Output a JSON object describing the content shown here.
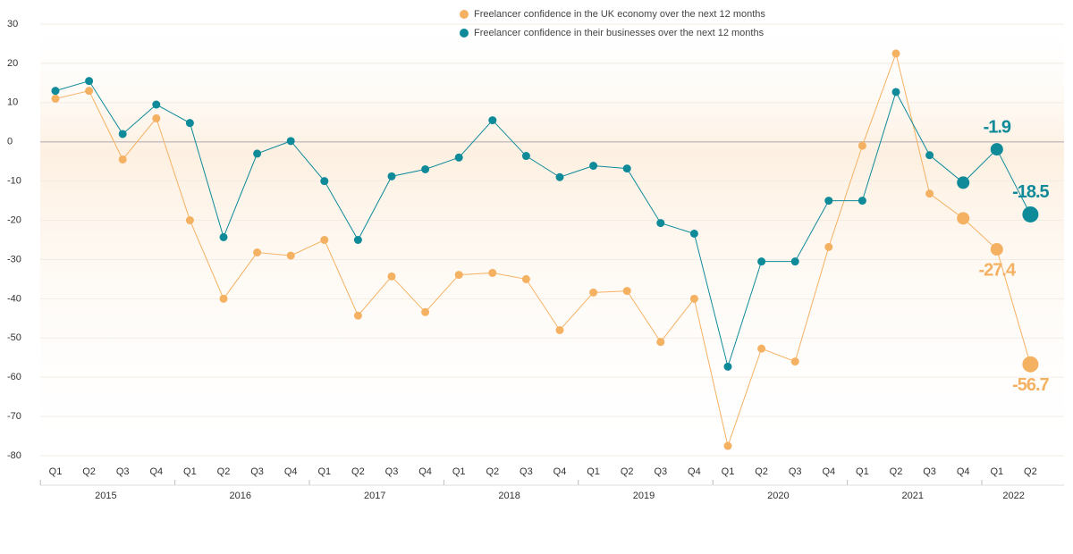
{
  "chart_data": {
    "type": "line",
    "categories": [
      "Q1",
      "Q2",
      "Q3",
      "Q4",
      "Q1",
      "Q2",
      "Q3",
      "Q4",
      "Q1",
      "Q2",
      "Q3",
      "Q4",
      "Q1",
      "Q2",
      "Q3",
      "Q4",
      "Q1",
      "Q2",
      "Q3",
      "Q4",
      "Q1",
      "Q2",
      "Q3",
      "Q4",
      "Q1",
      "Q2",
      "Q3",
      "Q4",
      "Q1",
      "Q2"
    ],
    "groups": [
      "2015",
      "2016",
      "2017",
      "2018",
      "2019",
      "2020",
      "2021",
      "2022"
    ],
    "series": [
      {
        "name": "Freelancer confidence in the UK economy over the next 12 months",
        "color": "#f5b162",
        "values": [
          11,
          13,
          -4.5,
          6,
          -20,
          -40,
          -28.2,
          -29,
          -25,
          -44.3,
          -34.3,
          -43.4,
          -33.9,
          -33.4,
          -35,
          -48,
          -38.4,
          -38,
          -51,
          -40,
          -77.5,
          -52.7,
          -56,
          -26.8,
          -1,
          22.5,
          -13.2,
          -19.5,
          -27.4,
          -56.7
        ],
        "value_labels": [
          null,
          null,
          null,
          null,
          null,
          null,
          null,
          null,
          null,
          null,
          null,
          null,
          null,
          null,
          null,
          null,
          null,
          null,
          null,
          null,
          null,
          null,
          null,
          null,
          null,
          null,
          null,
          null,
          "-27.4",
          "-56.7"
        ]
      },
      {
        "name": "Freelancer confidence in their businesses over the next 12 months",
        "color": "#0e8a99",
        "values": [
          13,
          15.5,
          2,
          9.5,
          4.8,
          -24.3,
          -3,
          0.2,
          -10,
          -25,
          -8.8,
          -7,
          -4,
          5.5,
          -3.6,
          -9,
          -6.1,
          -6.8,
          -20.7,
          -23.4,
          -57.3,
          -30.5,
          -30.5,
          -15,
          -15,
          12.7,
          -3.4,
          -10.4,
          -1.9,
          -18.5
        ],
        "value_labels": [
          null,
          null,
          null,
          null,
          null,
          null,
          null,
          null,
          null,
          null,
          null,
          null,
          null,
          null,
          null,
          null,
          null,
          null,
          null,
          null,
          null,
          null,
          null,
          null,
          null,
          null,
          null,
          null,
          "-1.9",
          "-18.5"
        ]
      }
    ],
    "ylim": [
      -80,
      30
    ],
    "yticks": [
      -80,
      -70,
      -60,
      -50,
      -40,
      -30,
      -20,
      -10,
      0,
      10,
      20,
      30
    ],
    "grid": true
  }
}
